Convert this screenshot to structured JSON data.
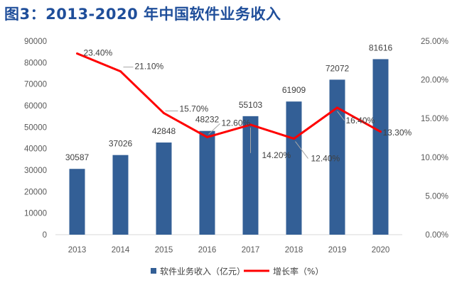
{
  "title": "图3：2013-2020 年中国软件业务收入",
  "chart_data": {
    "type": "bar",
    "categories": [
      "2013",
      "2014",
      "2015",
      "2016",
      "2017",
      "2018",
      "2019",
      "2020"
    ],
    "series": [
      {
        "name": "软件业务收入（亿元）",
        "type": "bar",
        "axis": "left",
        "color": "#335f96",
        "values": [
          30587,
          37026,
          42848,
          48232,
          55103,
          61909,
          72072,
          81616
        ]
      },
      {
        "name": "增长率（%）",
        "type": "line",
        "axis": "right",
        "color": "#ff0000",
        "values": [
          23.4,
          21.1,
          15.7,
          12.6,
          14.2,
          12.4,
          16.4,
          13.3
        ]
      }
    ],
    "bar_labels": [
      "30587",
      "37026",
      "42848",
      "48232",
      "55103",
      "61909",
      "72072",
      "81616"
    ],
    "line_labels": [
      "23.40%",
      "21.10%",
      "15.70%",
      "12.60%",
      "14.20%",
      "12.40%",
      "16.40%",
      "13.30%"
    ],
    "y_left": {
      "min": 0,
      "max": 90000,
      "ticks": [
        "0",
        "10000",
        "20000",
        "30000",
        "40000",
        "50000",
        "60000",
        "70000",
        "80000",
        "90000"
      ]
    },
    "y_right": {
      "min": 0,
      "max": 25,
      "ticks": [
        "0.00%",
        "5.00%",
        "10.00%",
        "15.00%",
        "20.00%",
        "25.00%"
      ]
    },
    "legend_position": "bottom",
    "grid": false
  }
}
